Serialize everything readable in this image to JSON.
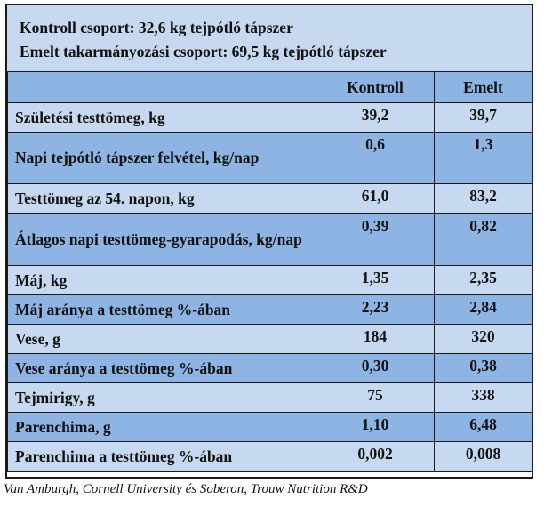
{
  "header": {
    "line1": "Kontroll csoport: 32,6 kg tejpótló tápszer",
    "line2": "Emelt takarmányozási csoport: 69,5 kg tejpótló tápszer"
  },
  "table": {
    "columns": [
      "",
      "Kontroll",
      "Emelt"
    ],
    "rows": [
      {
        "label": "Születési testtömeg, kg",
        "kontroll": "39,2",
        "emelt": "39,7"
      },
      {
        "label": "Napi tejpótló tápszer felvétel, kg/nap",
        "kontroll": "0,6",
        "emelt": "1,3"
      },
      {
        "label": "Testtömeg az 54. napon, kg",
        "kontroll": "61,0",
        "emelt": "83,2"
      },
      {
        "label": "Átlagos napi testtömeg-gyarapodás, kg/nap",
        "kontroll": "0,39",
        "emelt": "0,82"
      },
      {
        "label": "Máj, kg",
        "kontroll": "1,35",
        "emelt": "2,35"
      },
      {
        "label": "Máj aránya a testtömeg %-ában",
        "kontroll": "2,23",
        "emelt": "2,84"
      },
      {
        "label": "Vese, g",
        "kontroll": "184",
        "emelt": "320"
      },
      {
        "label": "Vese aránya a testtömeg %-ában",
        "kontroll": "0,30",
        "emelt": "0,38"
      },
      {
        "label": "Tejmirigy, g",
        "kontroll": "75",
        "emelt": "338"
      },
      {
        "label": "Parenchima, g",
        "kontroll": "1,10",
        "emelt": "6,48"
      },
      {
        "label": "Parenchima a testtömeg %-ában",
        "kontroll": "0,002",
        "emelt": "0,008"
      }
    ]
  },
  "source": "Van Amburgh, Cornell University és Soberon, Trouw Nutrition R&D",
  "colors": {
    "light_row": "#c7d9f1",
    "dark_row": "#8db4e2",
    "border": "#1a1a1a"
  }
}
